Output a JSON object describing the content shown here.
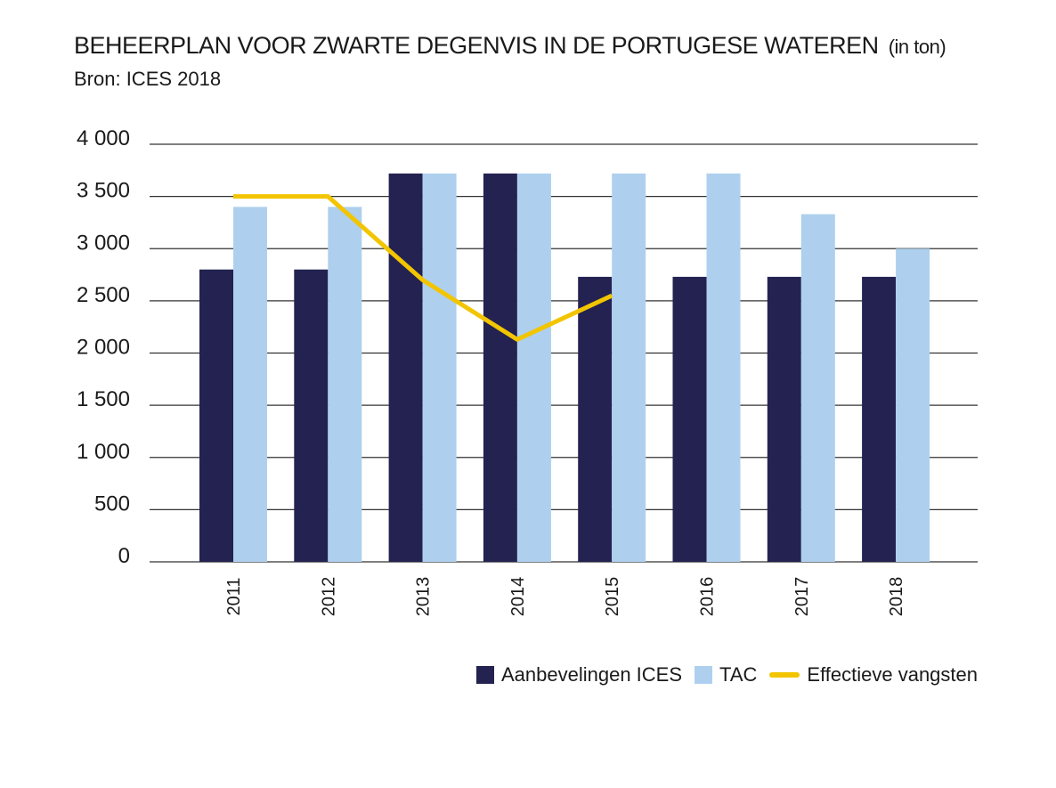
{
  "header": {
    "title": "BEHEERPLAN VOOR ZWARTE DEGENVIS IN DE PORTUGESE WATEREN",
    "title_unit": "(in ton)",
    "source": "Bron: ICES 2018"
  },
  "colors": {
    "ices": "#232250",
    "tac": "#aed0ee",
    "catches": "#f2c500",
    "grid": "#333333"
  },
  "chart_data": {
    "type": "bar",
    "title": "BEHEERPLAN VOOR ZWARTE DEGENVIS IN DE PORTUGESE WATEREN (in ton)",
    "ylim": [
      0,
      4000
    ],
    "yticks": [
      0,
      500,
      1000,
      1500,
      2000,
      2500,
      3000,
      3500,
      4000
    ],
    "ytick_labels": [
      "0",
      "500",
      "1 000",
      "1 500",
      "2 000",
      "2 500",
      "3 000",
      "3 500",
      "4 000"
    ],
    "grid": true,
    "legend_position": "bottom-right",
    "categories": [
      "2011",
      "2012",
      "2013",
      "2014",
      "2015",
      "2016",
      "2017",
      "2018"
    ],
    "series": [
      {
        "name": "Aanbevelingen ICES",
        "type": "bar",
        "values": [
          2800,
          2800,
          3720,
          3720,
          2730,
          2730,
          2730,
          2730
        ]
      },
      {
        "name": "TAC",
        "type": "bar",
        "values": [
          3400,
          3400,
          3720,
          3720,
          3720,
          3720,
          3330,
          3000
        ]
      },
      {
        "name": "Effectieve vangsten",
        "type": "line",
        "values": [
          3500,
          3500,
          2700,
          2130,
          2550,
          null,
          null,
          null
        ]
      }
    ]
  }
}
